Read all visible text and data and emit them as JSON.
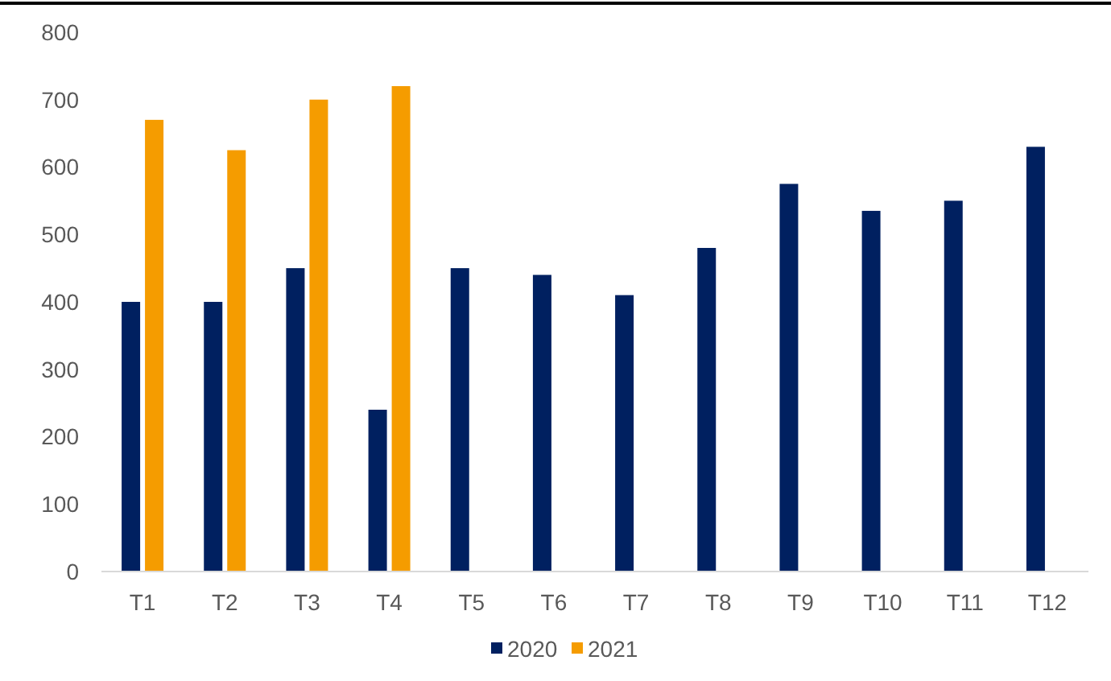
{
  "chart_data": {
    "type": "bar",
    "categories": [
      "T1",
      "T2",
      "T3",
      "T4",
      "T5",
      "T6",
      "T7",
      "T8",
      "T9",
      "T10",
      "T11",
      "T12"
    ],
    "series": [
      {
        "name": "2020",
        "color": "#002060",
        "values": [
          400,
          400,
          450,
          240,
          450,
          440,
          410,
          480,
          575,
          535,
          550,
          630
        ]
      },
      {
        "name": "2021",
        "color": "#f59c00",
        "values": [
          670,
          625,
          700,
          720,
          null,
          null,
          null,
          null,
          null,
          null,
          null,
          null
        ]
      }
    ],
    "ylim": [
      0,
      800
    ],
    "yticks": [
      0,
      100,
      200,
      300,
      400,
      500,
      600,
      700,
      800
    ],
    "grid": false,
    "legend": "bottom"
  }
}
